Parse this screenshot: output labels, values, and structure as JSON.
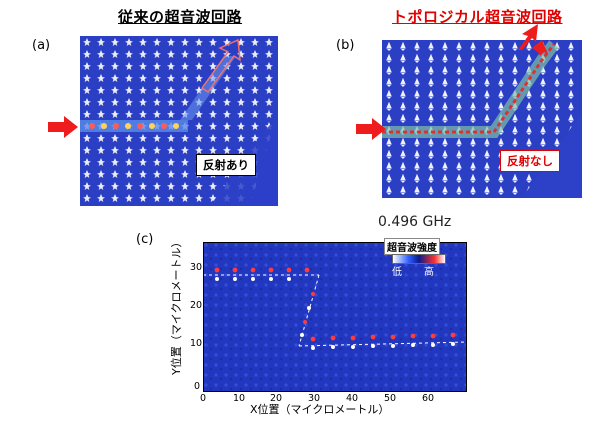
{
  "panel_a": {
    "title": "従来の超音波回路",
    "label": "(a)",
    "callout": "反射あり"
  },
  "panel_b": {
    "title": "トポロジカル超音波回路",
    "label": "(b)",
    "callout": "反射なし"
  },
  "panel_c": {
    "label": "(c)",
    "frequency": "0.496 GHz",
    "legend_title": "超音波強度",
    "legend_low": "低",
    "legend_high": "高",
    "x_title": "X位置（マイクロメートル）",
    "y_title": "Y位置（マイクロメートル）",
    "x_ticks": [
      "0",
      "10",
      "20",
      "30",
      "40",
      "50",
      "60"
    ],
    "y_ticks": [
      "0",
      "10",
      "20",
      "30"
    ]
  },
  "colors": {
    "background_blue": "#2b3fc4",
    "arrow_red": "#ee1c1c",
    "title_red": "#e00000"
  }
}
